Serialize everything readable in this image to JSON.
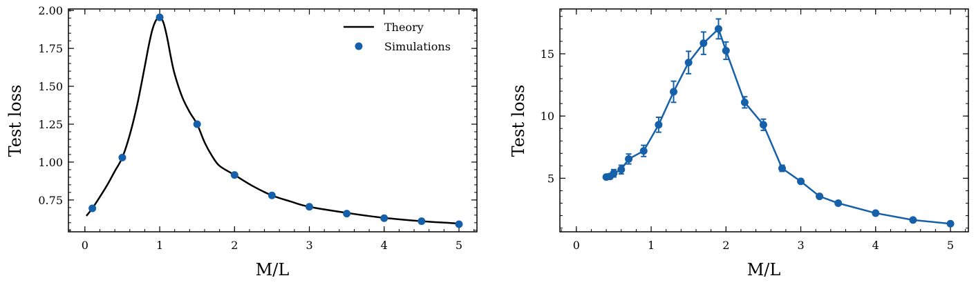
{
  "chart_data": [
    {
      "type": "line",
      "title": "",
      "xlabel": "M/L",
      "ylabel": "Test loss",
      "xlim": [
        -0.22,
        5.24
      ],
      "ylim": [
        0.54,
        2.01
      ],
      "xticks": [
        0,
        1,
        2,
        3,
        4,
        5
      ],
      "xtick_labels": [
        "0",
        "1",
        "2",
        "3",
        "4",
        "5"
      ],
      "yticks": [
        0.75,
        1.0,
        1.25,
        1.5,
        1.75,
        2.0
      ],
      "ytick_labels": [
        "0.75",
        "1.00",
        "1.25",
        "1.50",
        "1.75",
        "2.00"
      ],
      "grid": false,
      "legend_position": "top-right",
      "colors": {
        "theory": "#000000",
        "simulations": "#1560a8"
      },
      "series": [
        {
          "name": "Theory",
          "kind": "line",
          "x": [
            0.02,
            0.1,
            0.2,
            0.3,
            0.4,
            0.5,
            0.6,
            0.7,
            0.8,
            0.85,
            0.9,
            0.95,
            1.0,
            1.05,
            1.1,
            1.15,
            1.2,
            1.3,
            1.4,
            1.5,
            1.6,
            1.7,
            1.8,
            2.0,
            2.25,
            2.5,
            2.75,
            3.0,
            3.5,
            4.0,
            4.5,
            5.0
          ],
          "y": [
            0.645,
            0.695,
            0.77,
            0.85,
            0.94,
            1.03,
            1.18,
            1.38,
            1.63,
            1.76,
            1.87,
            1.935,
            1.955,
            1.92,
            1.82,
            1.69,
            1.58,
            1.43,
            1.33,
            1.25,
            1.13,
            1.04,
            0.975,
            0.915,
            0.84,
            0.78,
            0.74,
            0.705,
            0.665,
            0.632,
            0.61,
            0.595
          ]
        },
        {
          "name": "Simulations",
          "kind": "scatter",
          "x": [
            0.1,
            0.5,
            1.0,
            1.5,
            2.0,
            2.5,
            3.0,
            3.5,
            4.0,
            4.5,
            5.0
          ],
          "y": [
            0.695,
            1.03,
            1.955,
            1.25,
            0.915,
            0.78,
            0.705,
            0.66,
            0.63,
            0.61,
            0.59
          ]
        }
      ]
    },
    {
      "type": "line",
      "title": "",
      "xlabel": "M/L",
      "ylabel": "Test loss",
      "xlim": [
        -0.22,
        5.24
      ],
      "ylim": [
        0.7,
        18.6
      ],
      "xticks": [
        0,
        1,
        2,
        3,
        4,
        5
      ],
      "xtick_labels": [
        "0",
        "1",
        "2",
        "3",
        "4",
        "5"
      ],
      "yticks": [
        5,
        10,
        15
      ],
      "ytick_labels": [
        "5",
        "10",
        "15"
      ],
      "grid": false,
      "colors": {
        "line": "#1560a8"
      },
      "series": [
        {
          "name": "Simulations",
          "kind": "line-errorbar",
          "x": [
            0.4,
            0.45,
            0.5,
            0.6,
            0.7,
            0.9,
            1.1,
            1.3,
            1.5,
            1.7,
            1.9,
            2.0,
            2.25,
            2.5,
            2.75,
            3.0,
            3.25,
            3.5,
            4.0,
            4.5,
            5.0
          ],
          "y": [
            5.1,
            5.15,
            5.4,
            5.7,
            6.55,
            7.2,
            9.3,
            11.95,
            14.3,
            15.85,
            17.0,
            15.25,
            11.1,
            9.3,
            5.8,
            4.75,
            3.55,
            3.0,
            2.2,
            1.65,
            1.35
          ],
          "err": [
            0.15,
            0.2,
            0.3,
            0.35,
            0.4,
            0.45,
            0.6,
            0.85,
            0.9,
            0.9,
            0.8,
            0.7,
            0.45,
            0.45,
            0.25,
            0.15,
            0.12,
            0.1,
            0.08,
            0.06,
            0.05
          ]
        }
      ]
    }
  ]
}
